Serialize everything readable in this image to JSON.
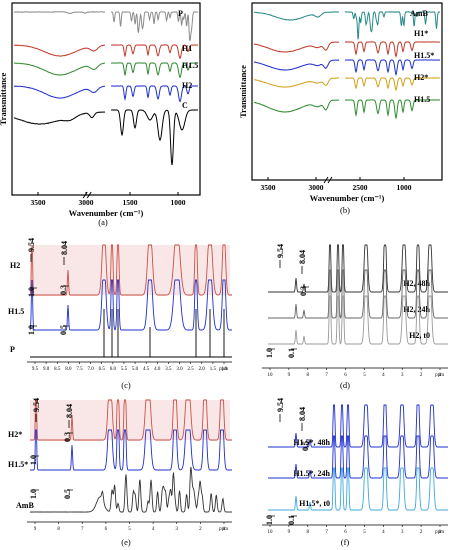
{
  "chart_data": [
    {
      "panel": "(a)",
      "type": "line",
      "xlabel": "Wavenumber (cm⁻¹)",
      "ylabel": "Transmittance",
      "xlim": [
        3700,
        600
      ],
      "x_ticks": [
        "3500",
        "3000",
        "1500",
        "1000"
      ],
      "axis_break": true,
      "series": [
        {
          "name": "P",
          "color": "#8c8c8c"
        },
        {
          "name": "H1",
          "color": "#c0392b"
        },
        {
          "name": "H1.5",
          "color": "#2e8b2e"
        },
        {
          "name": "H2",
          "color": "#1f2fd0"
        },
        {
          "name": "C",
          "color": "#000000"
        }
      ]
    },
    {
      "panel": "(b)",
      "type": "line",
      "xlabel": "Wavenumber (cm⁻¹)",
      "ylabel": "Transmittance",
      "xlim": [
        3600,
        600
      ],
      "x_ticks": [
        "3500",
        "3000",
        "2500",
        "1000"
      ],
      "axis_break": true,
      "series": [
        {
          "name": "AmB",
          "color": "#2a8a8a"
        },
        {
          "name": "H1*",
          "color": "#c0392b"
        },
        {
          "name": "H1.5*",
          "color": "#1f2fd0"
        },
        {
          "name": "H2*",
          "color": "#d4a017"
        },
        {
          "name": "H1.5",
          "color": "#2e8b2e"
        }
      ]
    },
    {
      "panel": "(c)",
      "type": "line",
      "xlabel": "ppm",
      "series": [
        {
          "name": "H2",
          "color": "#c0392b"
        },
        {
          "name": "H1.5",
          "color": "#1f2fd0"
        },
        {
          "name": "P",
          "color": "#000000"
        }
      ],
      "peak_labels": [
        "9.54",
        "8.04"
      ],
      "integrals": {
        "H2": [
          "1.0",
          "0.3"
        ],
        "H1.5": [
          "1.0",
          "0.5"
        ]
      },
      "x_ticks": [
        "9.5",
        "9.0",
        "8.5",
        "8.0",
        "7.5",
        "7.0",
        "6.5",
        "6.0",
        "5.5",
        "5.0",
        "4.5",
        "4.0",
        "3.5",
        "3.0",
        "2.5",
        "2.0",
        "1.5",
        "1.0"
      ]
    },
    {
      "panel": "(d)",
      "type": "line",
      "xlabel": "ppm",
      "series": [
        {
          "name": "H2, 48h",
          "color": "#333333"
        },
        {
          "name": "H2, 24h",
          "color": "#666666"
        },
        {
          "name": "H2, t0",
          "color": "#999999"
        }
      ],
      "peak_labels": [
        "9.54",
        "8.04"
      ],
      "integrals": [
        "1.0",
        "0.3",
        "0.1"
      ],
      "x_ticks": [
        "10",
        "9",
        "8",
        "7",
        "6",
        "5",
        "4",
        "3",
        "2",
        "1"
      ]
    },
    {
      "panel": "(e)",
      "type": "line",
      "xlabel": "ppm",
      "series": [
        {
          "name": "H2*",
          "color": "#c0392b"
        },
        {
          "name": "H1.5*",
          "color": "#1f2fd0"
        },
        {
          "name": "AmB",
          "color": "#333333"
        }
      ],
      "peak_labels": [
        "9.54",
        "8.04"
      ],
      "integrals": {
        "H2*": [
          "1.0",
          "0.3"
        ],
        "H1.5*": [
          "1.0",
          "0.5"
        ]
      },
      "x_ticks": [
        "9",
        "8",
        "7",
        "6",
        "5",
        "4",
        "3",
        "2",
        "1"
      ]
    },
    {
      "panel": "(f)",
      "type": "line",
      "xlabel": "ppm",
      "series": [
        {
          "name": "H1.5*, 48h",
          "color": "#1f2fd0"
        },
        {
          "name": "H1.5*, 24h",
          "color": "#1f2fd0"
        },
        {
          "name": "H1.5*, t0",
          "color": "#3fa9e0"
        }
      ],
      "peak_labels": [
        "9.54",
        "8.04"
      ],
      "integrals": [
        "1.0",
        "0.5",
        "0.1"
      ],
      "x_ticks": [
        "10",
        "9",
        "8",
        "7",
        "6",
        "5",
        "4",
        "3",
        "2",
        "1"
      ]
    }
  ]
}
